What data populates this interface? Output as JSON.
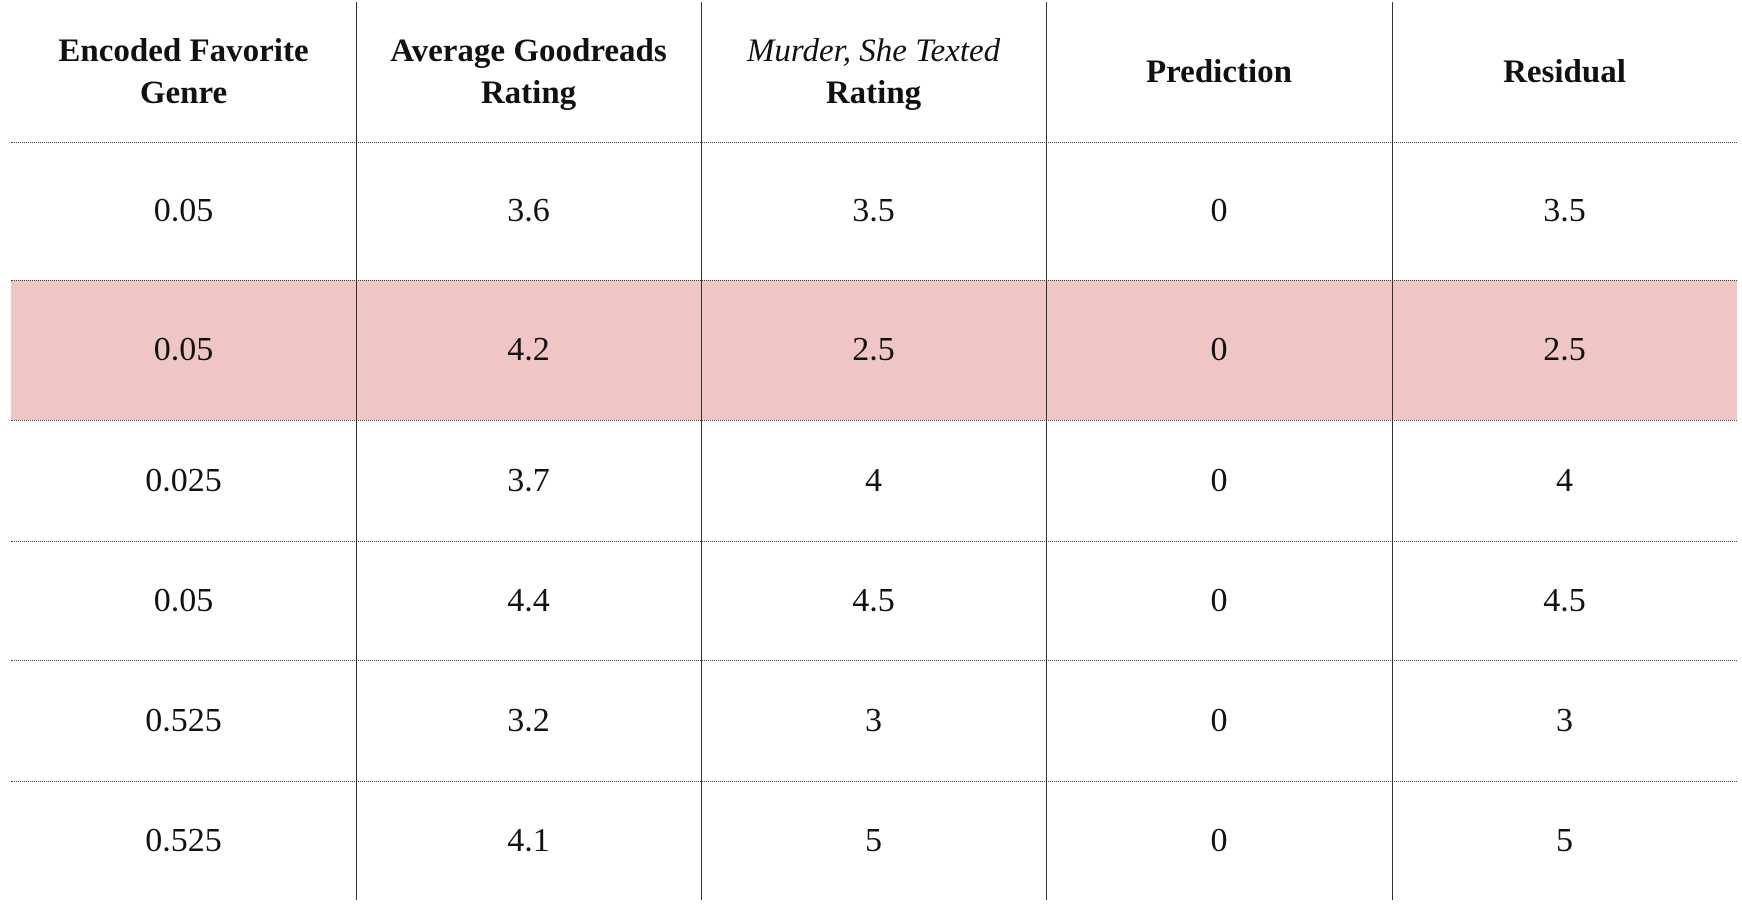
{
  "header": {
    "columns": [
      "Encoded Favorite Genre",
      "Average Goodreads Rating",
      {
        "italic": "Murder, She Texted",
        "text": "Rating"
      },
      "Prediction",
      "Residual"
    ]
  },
  "table": {
    "highlight_row": 1,
    "highlight_color": "#efc6c3",
    "rows": [
      [
        0.05,
        3.6,
        3.5,
        0,
        3.5
      ],
      [
        0.05,
        4.2,
        2.5,
        0,
        2.5
      ],
      [
        0.025,
        3.7,
        4,
        0,
        4
      ],
      [
        0.05,
        4.4,
        4.5,
        0,
        4.5
      ],
      [
        0.525,
        3.2,
        3,
        0,
        3
      ],
      [
        0.525,
        4.1,
        5,
        0,
        5
      ]
    ]
  }
}
